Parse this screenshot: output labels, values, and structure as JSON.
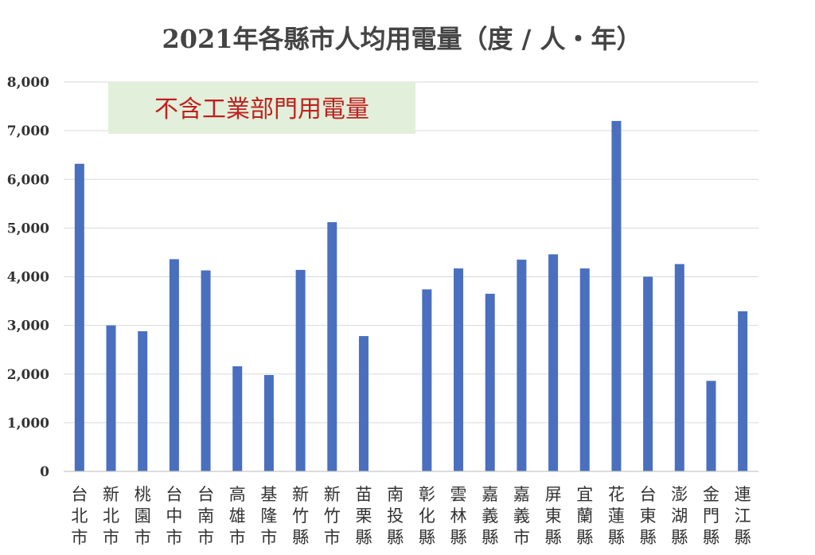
{
  "chart_data": {
    "type": "bar",
    "title": "2021年各縣市人均用電量（度 / 人・年）",
    "annotation": "不含工業部門用電量",
    "categories": [
      "台北市",
      "新北市",
      "桃園市",
      "台中市",
      "台南市",
      "高雄市",
      "基隆市",
      "新竹縣",
      "新竹市",
      "苗栗縣",
      "南投縣",
      "彰化縣",
      "雲林縣",
      "嘉義縣",
      "嘉義市",
      "屏東縣",
      "宜蘭縣",
      "花蓮縣",
      "台東縣",
      "澎湖縣",
      "金門縣",
      "連江縣"
    ],
    "values": [
      6320,
      3000,
      2880,
      4360,
      4130,
      2160,
      1980,
      4140,
      5120,
      2780,
      null,
      3740,
      4170,
      3650,
      4350,
      4460,
      4170,
      7200,
      4000,
      4260,
      1860,
      3290
    ],
    "yticks": [
      "0",
      "1,000",
      "2,000",
      "3,000",
      "4,000",
      "5,000",
      "6,000",
      "7,000",
      "8,000"
    ],
    "ylim": [
      0,
      8000
    ],
    "grid": true,
    "legend": "none",
    "colors": {
      "bar": "#4a6fbe",
      "annotation_bg": "#e2efda",
      "annotation_text": "#c0211f"
    }
  }
}
